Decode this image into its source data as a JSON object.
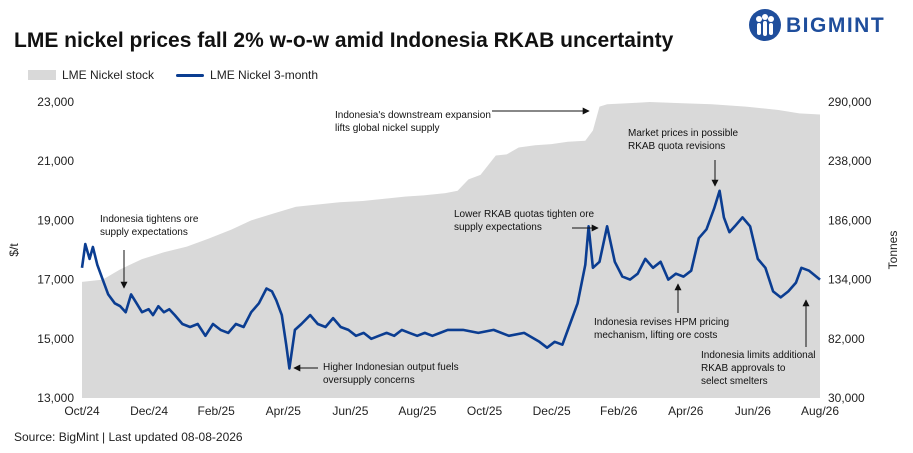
{
  "header": {
    "title": "LME nickel prices fall 2% w-o-w amid Indonesia RKAB uncertainty",
    "logo_text": "BIGMINT"
  },
  "footer": {
    "source": "Source: BigMint | Last updated 08-08-2026"
  },
  "colors": {
    "stock_area": "#d9d9d9",
    "price_line": "#0b3d91",
    "logo": "#1f4e9c"
  },
  "chart_data": {
    "type": "line",
    "title": "LME nickel prices fall 2% w-o-w amid Indonesia RKAB uncertainty",
    "x_ticks": [
      "Oct/24",
      "Dec/24",
      "Feb/25",
      "Apr/25",
      "Jun/25",
      "Aug/25",
      "Oct/25",
      "Dec/25",
      "Feb/26",
      "Apr/26",
      "Jun/26",
      "Aug/26"
    ],
    "x_range": [
      "2024-10-01",
      "2026-08-08"
    ],
    "ylabel": "$/t",
    "ylabel_right": "Tonnes",
    "ylim": [
      13000,
      23000
    ],
    "ylim_right": [
      30000,
      290000
    ],
    "y_ticks": [
      "13,000",
      "15,000",
      "17,000",
      "19,000",
      "21,000",
      "23,000"
    ],
    "y_ticks_right": [
      "30,000",
      "82,000",
      "134,000",
      "186,000",
      "238,000",
      "290,000"
    ],
    "grid": false,
    "legend": "top-left",
    "series": [
      {
        "name": "LME Nickel stock",
        "kind": "area",
        "axis": "right",
        "points": [
          [
            "2024-10-01",
            132000
          ],
          [
            "2024-10-20",
            134000
          ],
          [
            "2024-11-05",
            143000
          ],
          [
            "2024-11-25",
            152000
          ],
          [
            "2024-12-15",
            158000
          ],
          [
            "2025-01-05",
            163000
          ],
          [
            "2025-01-25",
            170000
          ],
          [
            "2025-02-15",
            178000
          ],
          [
            "2025-03-05",
            186000
          ],
          [
            "2025-03-25",
            192000
          ],
          [
            "2025-04-15",
            198000
          ],
          [
            "2025-05-05",
            200000
          ],
          [
            "2025-05-25",
            202000
          ],
          [
            "2025-06-15",
            203000
          ],
          [
            "2025-07-05",
            205000
          ],
          [
            "2025-07-25",
            207000
          ],
          [
            "2025-08-10",
            208000
          ],
          [
            "2025-08-30",
            210000
          ],
          [
            "2025-09-10",
            212000
          ],
          [
            "2025-09-20",
            222000
          ],
          [
            "2025-10-01",
            226000
          ],
          [
            "2025-10-15",
            243000
          ],
          [
            "2025-10-25",
            244000
          ],
          [
            "2025-11-05",
            250000
          ],
          [
            "2025-11-20",
            252000
          ],
          [
            "2025-12-05",
            253000
          ],
          [
            "2025-12-20",
            255000
          ],
          [
            "2026-01-05",
            256000
          ],
          [
            "2026-01-12",
            265000
          ],
          [
            "2026-01-18",
            286000
          ],
          [
            "2026-01-25",
            288000
          ],
          [
            "2026-02-15",
            289000
          ],
          [
            "2026-03-05",
            290000
          ],
          [
            "2026-04-01",
            289000
          ],
          [
            "2026-05-01",
            288000
          ],
          [
            "2026-06-01",
            286000
          ],
          [
            "2026-07-01",
            283000
          ],
          [
            "2026-07-20",
            280000
          ],
          [
            "2026-08-08",
            279000
          ]
        ]
      },
      {
        "name": "LME Nickel 3-month",
        "kind": "line",
        "axis": "left",
        "points": [
          [
            "2024-10-01",
            17400
          ],
          [
            "2024-10-04",
            18200
          ],
          [
            "2024-10-08",
            17700
          ],
          [
            "2024-10-11",
            18100
          ],
          [
            "2024-10-15",
            17500
          ],
          [
            "2024-10-20",
            17000
          ],
          [
            "2024-10-25",
            16500
          ],
          [
            "2024-10-31",
            16200
          ],
          [
            "2024-11-05",
            16100
          ],
          [
            "2024-11-10",
            15900
          ],
          [
            "2024-11-15",
            16500
          ],
          [
            "2024-11-20",
            16200
          ],
          [
            "2024-11-25",
            15900
          ],
          [
            "2024-12-01",
            16000
          ],
          [
            "2024-12-05",
            15800
          ],
          [
            "2024-12-10",
            16100
          ],
          [
            "2024-12-15",
            15900
          ],
          [
            "2024-12-20",
            16000
          ],
          [
            "2024-12-25",
            15800
          ],
          [
            "2025-01-01",
            15500
          ],
          [
            "2025-01-08",
            15400
          ],
          [
            "2025-01-15",
            15500
          ],
          [
            "2025-01-22",
            15100
          ],
          [
            "2025-01-29",
            15500
          ],
          [
            "2025-02-05",
            15300
          ],
          [
            "2025-02-12",
            15200
          ],
          [
            "2025-02-19",
            15500
          ],
          [
            "2025-02-26",
            15400
          ],
          [
            "2025-03-05",
            15900
          ],
          [
            "2025-03-12",
            16200
          ],
          [
            "2025-03-19",
            16700
          ],
          [
            "2025-03-24",
            16600
          ],
          [
            "2025-03-28",
            16300
          ],
          [
            "2025-04-02",
            15800
          ],
          [
            "2025-04-06",
            14800
          ],
          [
            "2025-04-09",
            14000
          ],
          [
            "2025-04-14",
            15300
          ],
          [
            "2025-04-20",
            15500
          ],
          [
            "2025-04-28",
            15800
          ],
          [
            "2025-05-05",
            15500
          ],
          [
            "2025-05-12",
            15400
          ],
          [
            "2025-05-19",
            15700
          ],
          [
            "2025-05-26",
            15400
          ],
          [
            "2025-06-02",
            15300
          ],
          [
            "2025-06-09",
            15100
          ],
          [
            "2025-06-16",
            15200
          ],
          [
            "2025-06-23",
            15000
          ],
          [
            "2025-06-30",
            15100
          ],
          [
            "2025-07-07",
            15200
          ],
          [
            "2025-07-14",
            15100
          ],
          [
            "2025-07-21",
            15300
          ],
          [
            "2025-07-28",
            15200
          ],
          [
            "2025-08-04",
            15100
          ],
          [
            "2025-08-11",
            15200
          ],
          [
            "2025-08-18",
            15100
          ],
          [
            "2025-08-25",
            15200
          ],
          [
            "2025-09-01",
            15300
          ],
          [
            "2025-09-15",
            15300
          ],
          [
            "2025-09-29",
            15200
          ],
          [
            "2025-10-13",
            15300
          ],
          [
            "2025-10-27",
            15100
          ],
          [
            "2025-11-10",
            15200
          ],
          [
            "2025-11-24",
            14900
          ],
          [
            "2025-12-01",
            14700
          ],
          [
            "2025-12-08",
            14900
          ],
          [
            "2025-12-15",
            14800
          ],
          [
            "2025-12-22",
            15500
          ],
          [
            "2025-12-29",
            16200
          ],
          [
            "2026-01-05",
            17500
          ],
          [
            "2026-01-08",
            18800
          ],
          [
            "2026-01-12",
            17400
          ],
          [
            "2026-01-18",
            17600
          ],
          [
            "2026-01-25",
            18800
          ],
          [
            "2026-02-01",
            17600
          ],
          [
            "2026-02-08",
            17100
          ],
          [
            "2026-02-15",
            17000
          ],
          [
            "2026-02-22",
            17200
          ],
          [
            "2026-03-01",
            17700
          ],
          [
            "2026-03-08",
            17400
          ],
          [
            "2026-03-15",
            17600
          ],
          [
            "2026-03-22",
            17000
          ],
          [
            "2026-03-29",
            17200
          ],
          [
            "2026-04-05",
            17100
          ],
          [
            "2026-04-12",
            17300
          ],
          [
            "2026-04-19",
            18400
          ],
          [
            "2026-04-26",
            18700
          ],
          [
            "2026-05-03",
            19400
          ],
          [
            "2026-05-08",
            20000
          ],
          [
            "2026-05-12",
            19100
          ],
          [
            "2026-05-17",
            18600
          ],
          [
            "2026-05-22",
            18800
          ],
          [
            "2026-05-29",
            19100
          ],
          [
            "2026-06-05",
            18800
          ],
          [
            "2026-06-12",
            17700
          ],
          [
            "2026-06-19",
            17400
          ],
          [
            "2026-06-26",
            16600
          ],
          [
            "2026-07-03",
            16400
          ],
          [
            "2026-07-10",
            16600
          ],
          [
            "2026-07-17",
            16900
          ],
          [
            "2026-07-22",
            17400
          ],
          [
            "2026-07-29",
            17300
          ],
          [
            "2026-08-08",
            17000
          ]
        ]
      }
    ],
    "annotations": [
      {
        "lines": [
          "Indonesia tightens ore",
          "supply expectations"
        ],
        "date": "2024-11-15",
        "value": 16600
      },
      {
        "lines": [
          "Higher Indonesian output fuels",
          "oversupply concerns"
        ],
        "date": "2025-04-09",
        "value": 14000
      },
      {
        "lines": [
          "Indonesia's downstream expansion",
          "lifts global nickel supply"
        ],
        "date": "2026-01-18",
        "value": 22800
      },
      {
        "lines": [
          "Lower RKAB quotas tighten ore",
          "supply expectations"
        ],
        "date": "2026-01-26",
        "value": 18900
      },
      {
        "lines": [
          "Market prices in possible",
          "RKAB quota revisions"
        ],
        "date": "2026-05-08",
        "value": 20000
      },
      {
        "lines": [
          "Indonesia revises HPM pricing",
          "mechanism, lifting ore costs"
        ],
        "date": "2026-04-02",
        "value": 17000
      },
      {
        "lines": [
          "Indonesia limits additional",
          "RKAB approvals to",
          "select smelters"
        ],
        "date": "2026-07-25",
        "value": 16800
      }
    ]
  }
}
